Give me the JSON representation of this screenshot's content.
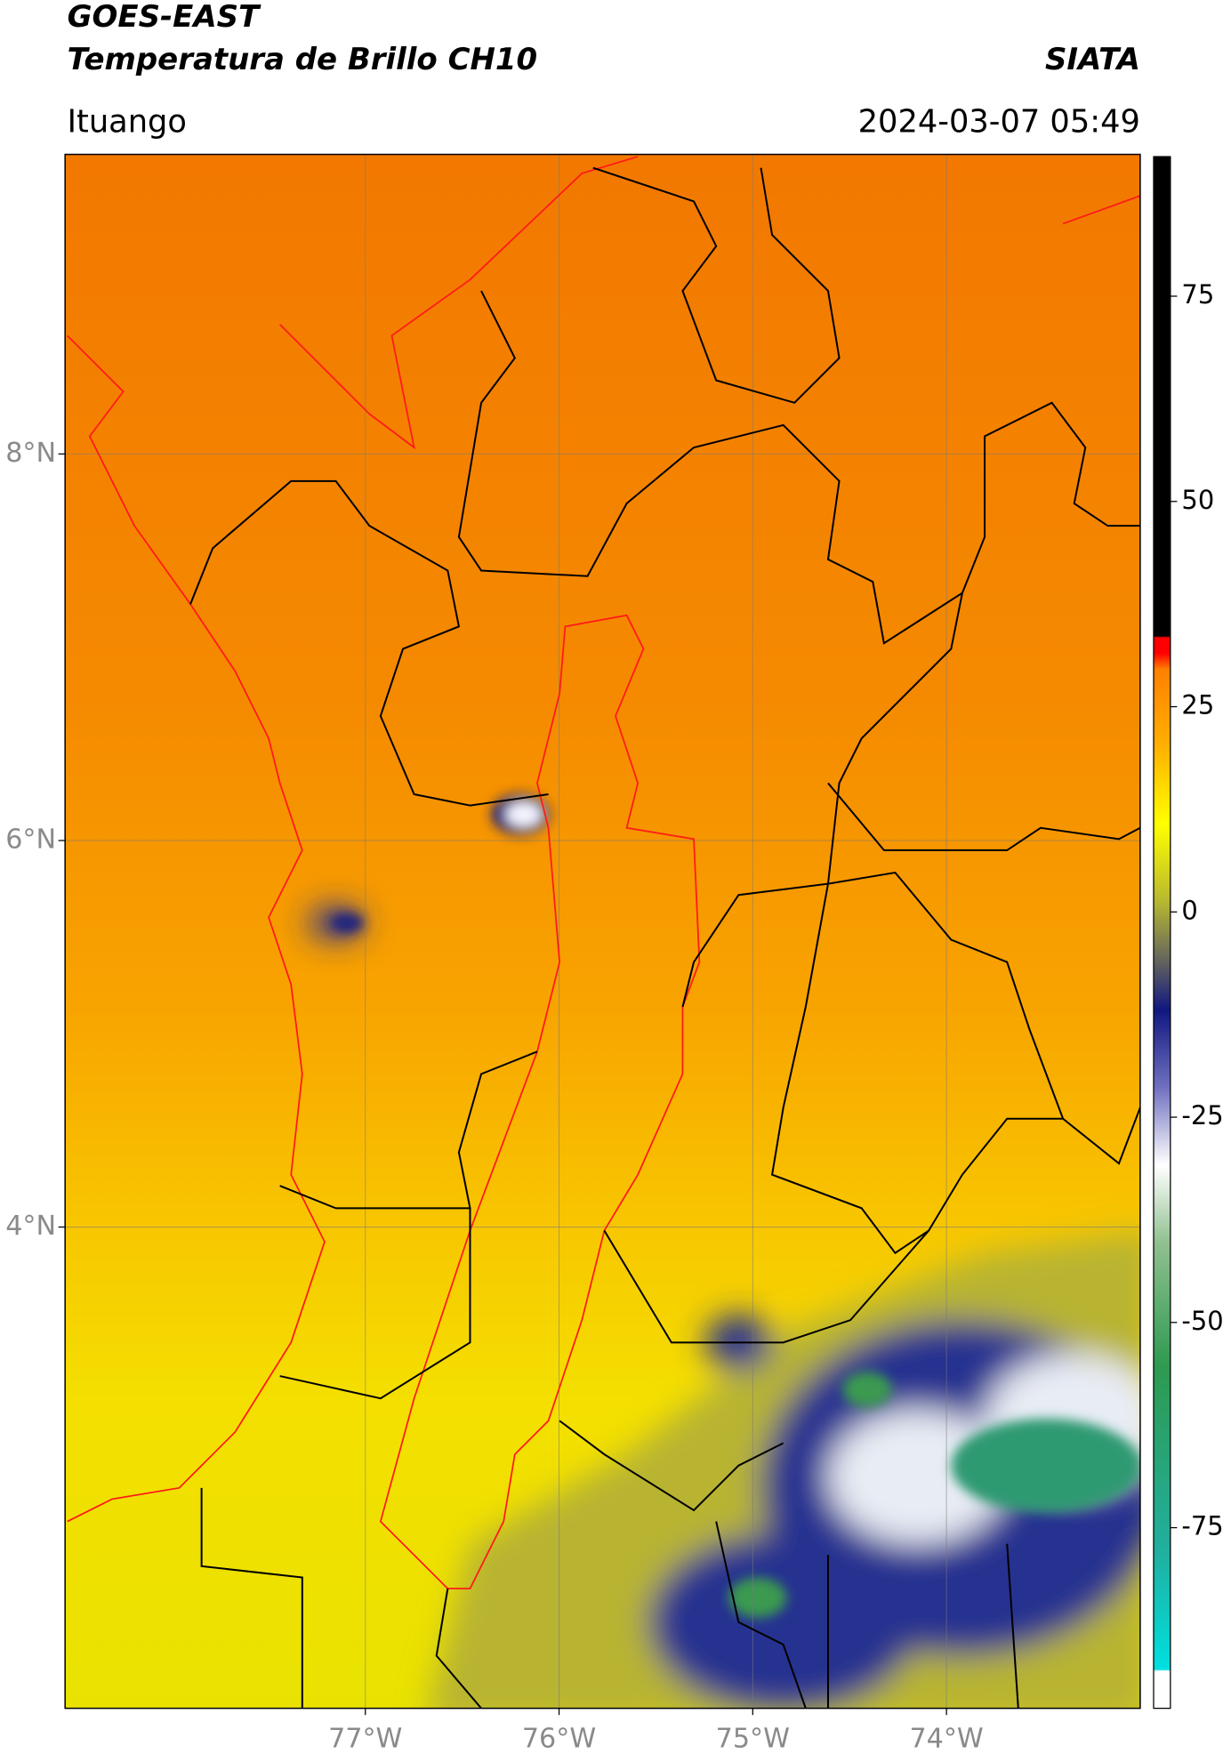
{
  "header": {
    "title": "GOES-EAST",
    "subtitle": "Temperatura de Brillo CH10",
    "source": "SIATA",
    "location": "Ituango",
    "datetime": "2024-03-07 05:49"
  },
  "map": {
    "xlim": [
      -78.55,
      -73.0
    ],
    "ylim": [
      1.51,
      9.55
    ],
    "grid": true,
    "xticks": [
      {
        "value": -77,
        "label": "77°W"
      },
      {
        "value": -76,
        "label": "76°W"
      },
      {
        "value": -75,
        "label": "75°W"
      },
      {
        "value": -74,
        "label": "74°W"
      }
    ],
    "yticks": [
      {
        "value": 8,
        "label": "8°N"
      },
      {
        "value": 6,
        "label": "6°N"
      },
      {
        "value": 4,
        "label": "4°N"
      }
    ]
  },
  "colorbar": {
    "lim": [
      -97,
      92
    ],
    "ticks": [
      75,
      50,
      25,
      0,
      -25,
      -50,
      -75
    ]
  }
}
